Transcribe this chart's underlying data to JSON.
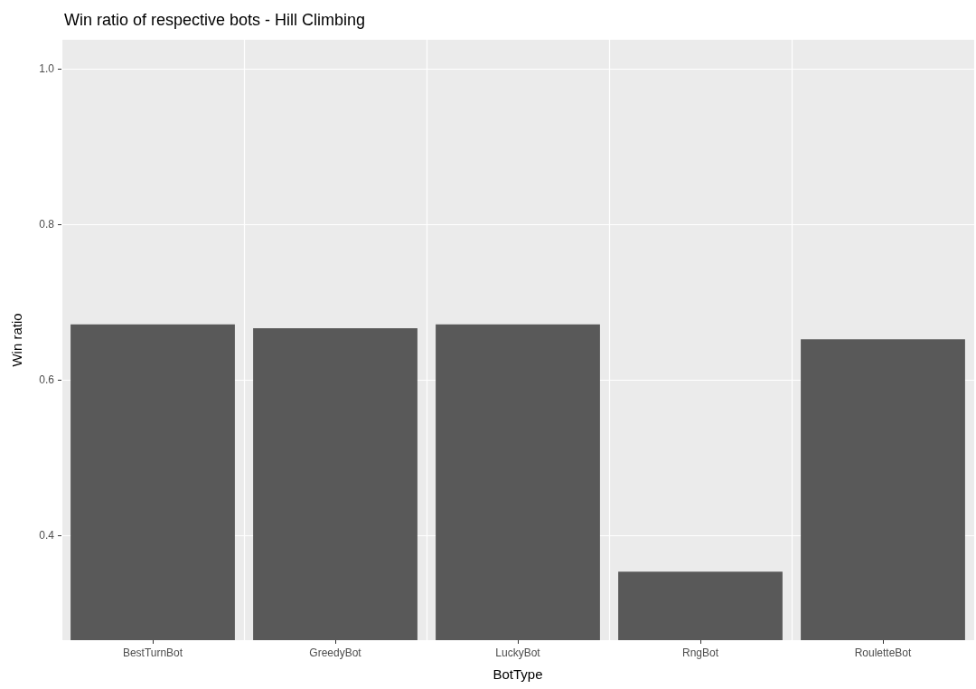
{
  "chart_data": {
    "type": "bar",
    "title": "Win ratio of respective bots - Hill Climbing",
    "xlabel": "BotType",
    "ylabel": "Win ratio",
    "categories": [
      "BestTurnBot",
      "GreedyBot",
      "LuckyBot",
      "RngBot",
      "RouletteBot"
    ],
    "values": [
      0.671,
      0.666,
      0.671,
      0.353,
      0.652
    ],
    "color": "#595959",
    "ylim": [
      0.265,
      1.037
    ],
    "yticks": [
      0.4,
      0.6,
      0.8,
      {
        "value": 1,
        "label": "1.0"
      }
    ],
    "grid": true
  }
}
